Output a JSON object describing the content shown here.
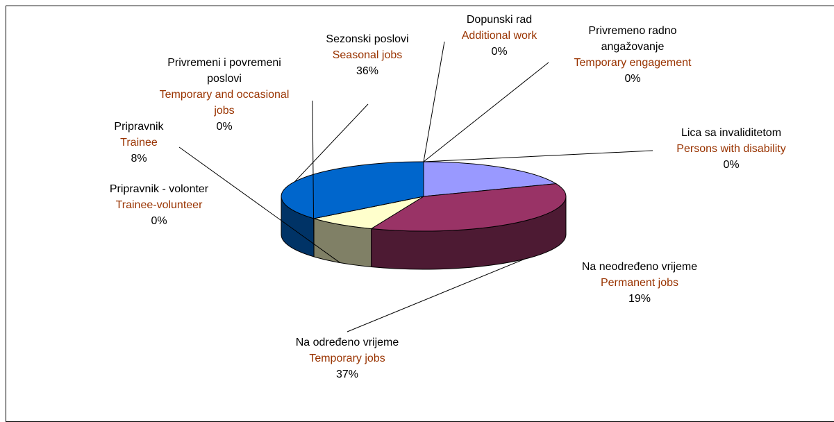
{
  "chart_data": {
    "type": "pie3d",
    "categories": [
      "Na neodređeno vrijeme",
      "Na određeno vrijeme",
      "Pripravnik - volonter",
      "Pripravnik",
      "Privremeni i povremeni poslovi",
      "Sezonski poslovi",
      "Dopunski rad",
      "Privremeno radno angažovanje",
      "Lica sa invaliditetom"
    ],
    "categories_en": [
      "Permanent jobs",
      "Temporary jobs",
      "Trainee-volunteer",
      "Trainee",
      "Temporary and occasional jobs",
      "Seasonal jobs",
      "Additional work",
      "Temporary engagement",
      "Persons with disability"
    ],
    "values": [
      19,
      37,
      0,
      8,
      0,
      36,
      0,
      0,
      0
    ],
    "value_labels": [
      "19%",
      "37%",
      "0%",
      "8%",
      "0%",
      "36%",
      "0%",
      "0%",
      "0%"
    ],
    "colors": [
      "#9999ff",
      "#993366",
      "#ccffff",
      "#ffffcc",
      "#660066",
      "#0066cc",
      "#ff8080",
      "#ccccff",
      "#000080"
    ]
  }
}
